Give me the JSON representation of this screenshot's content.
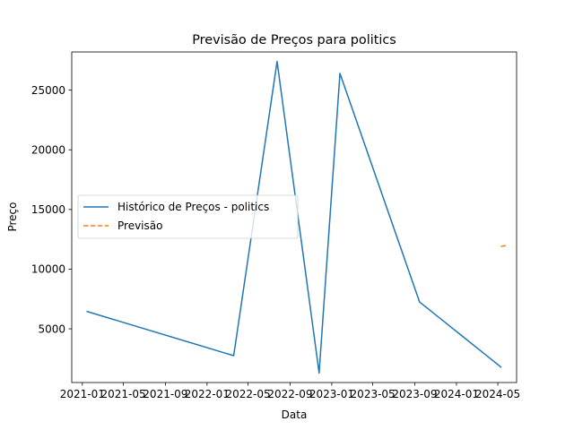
{
  "chart_data": {
    "type": "line",
    "title": "Previsão de Preços para politics",
    "xlabel": "Data",
    "ylabel": "Preço",
    "x_tick_labels": [
      "2021-01",
      "2021-05",
      "2021-09",
      "2022-01",
      "2022-05",
      "2022-09",
      "2023-01",
      "2023-05",
      "2023-09",
      "2024-01",
      "2024-05"
    ],
    "y_ticks": [
      5000,
      10000,
      15000,
      20000,
      25000
    ],
    "ylim": [
      500,
      28200
    ],
    "xlim": [
      "2020-12-01",
      "2024-06-25"
    ],
    "grid": false,
    "legend_position": "center-left",
    "series": [
      {
        "name": "Histórico de Preços - politics",
        "color": "#1f77b4",
        "style": "solid",
        "x": [
          "2021-01-15",
          "2022-03-20",
          "2022-07-25",
          "2022-11-25",
          "2023-01-25",
          "2023-09-15",
          "2024-05-10"
        ],
        "y": [
          6450,
          2750,
          27400,
          1300,
          26400,
          7250,
          1800
        ]
      },
      {
        "name": "Previsão",
        "color": "#ff7f0e",
        "style": "dashed",
        "x": [
          "2024-05-10",
          "2024-05-28"
        ],
        "y": [
          11900,
          12000
        ]
      }
    ]
  }
}
